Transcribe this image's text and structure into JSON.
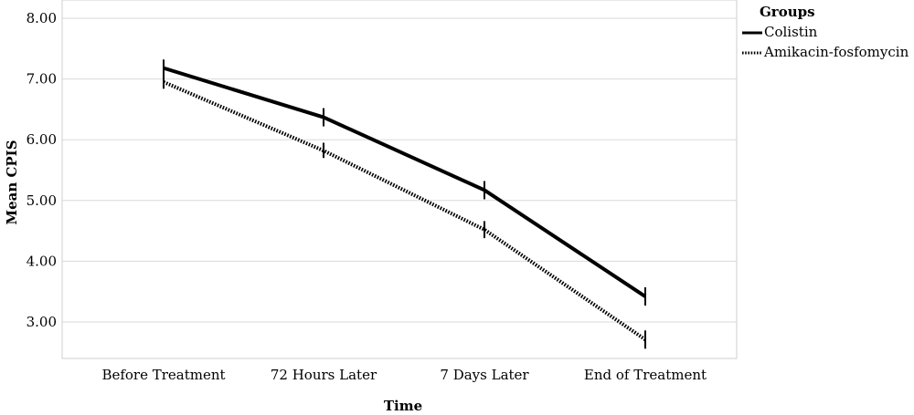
{
  "chart_data": {
    "type": "line",
    "title": "",
    "xlabel": "Time",
    "ylabel": "Mean CPIS",
    "categories": [
      "Before Treatment",
      "72 Hours Later",
      "7 Days Later",
      "End of Treatment"
    ],
    "yticks": [
      "3.00",
      "4.00",
      "5.00",
      "6.00",
      "7.00",
      "8.00"
    ],
    "ylim": [
      2.45,
      8.0
    ],
    "grid": true,
    "legend": {
      "title": "Groups",
      "position": "top-right"
    },
    "series": [
      {
        "name": "Colistin",
        "style": "solid",
        "color": "#000000",
        "values": [
          7.18,
          6.37,
          5.17,
          3.42
        ],
        "error_low": [
          7.05,
          6.22,
          5.02,
          3.27
        ],
        "error_high": [
          7.32,
          6.52,
          5.32,
          3.57
        ]
      },
      {
        "name": "Amikacin-fosfomycin",
        "style": "dotted",
        "color": "#000000",
        "values": [
          6.95,
          5.82,
          4.52,
          2.71
        ],
        "error_low": [
          6.84,
          5.7,
          4.38,
          2.56
        ],
        "error_high": [
          7.06,
          5.95,
          4.66,
          2.86
        ]
      }
    ]
  }
}
